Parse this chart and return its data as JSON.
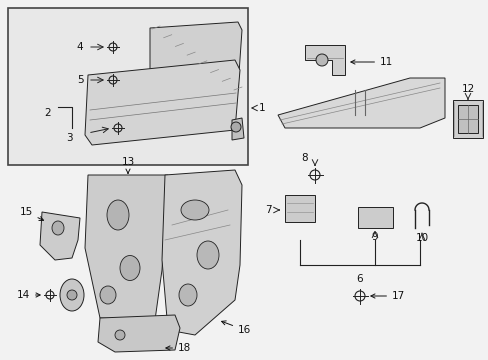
{
  "bg_color": "#f2f2f2",
  "white": "#ffffff",
  "black": "#111111",
  "fig_width": 4.89,
  "fig_height": 3.6,
  "inset_bg": "#e8e8e8",
  "line_color": "#222222",
  "fill_light": "#d8d8d8",
  "fill_mid": "#bbbbbb",
  "fill_white": "#f8f8f8"
}
